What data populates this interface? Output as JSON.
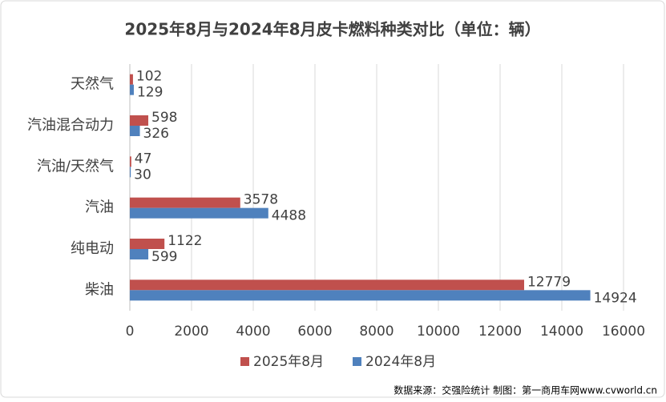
{
  "chart_data": {
    "type": "hbar",
    "title": "2025年8月与2024年8月皮卡燃料种类对比（单位：辆）",
    "categories": [
      "天然气",
      "汽油混合动力",
      "汽油/天然气",
      "汽油",
      "纯电动",
      "柴油"
    ],
    "series": [
      {
        "name": "2025年8月",
        "color": "#c0504d",
        "values": [
          102,
          598,
          47,
          3578,
          1122,
          12779
        ]
      },
      {
        "name": "2024年8月",
        "color": "#4f81bd",
        "values": [
          129,
          326,
          30,
          4488,
          599,
          14924
        ]
      }
    ],
    "xlim": [
      0,
      16000
    ],
    "xticks": [
      0,
      2000,
      4000,
      6000,
      8000,
      10000,
      12000,
      14000,
      16000
    ],
    "grid": true,
    "legend": "bottom",
    "source": "数据来源：交强险统计 制图：第一商用车网www.cvworld.cn"
  }
}
